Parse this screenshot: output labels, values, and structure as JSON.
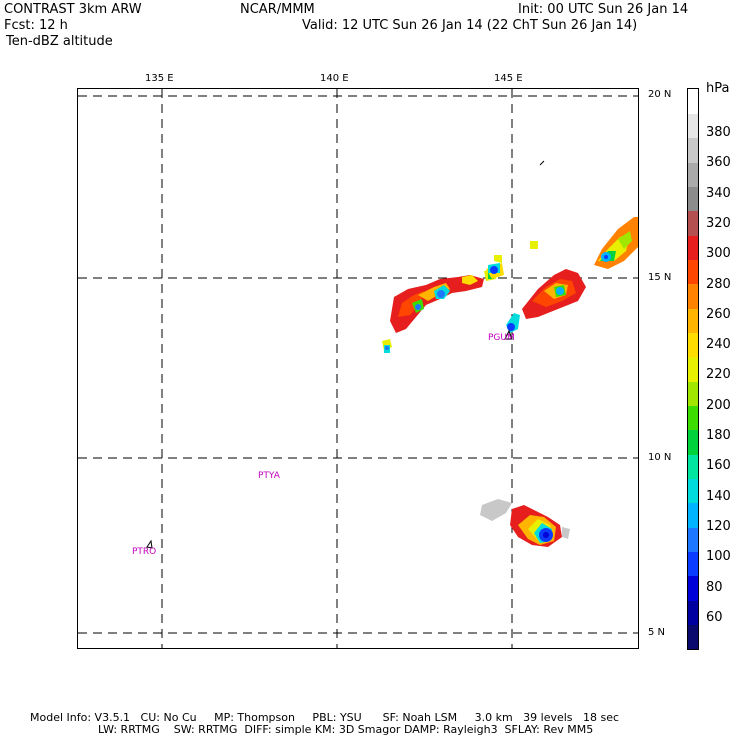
{
  "header": {
    "model": "CONTRAST  3km ARW",
    "center": "NCAR/MMM",
    "init": "Init: 00 UTC Sun 26 Jan 14",
    "fcst": "Fcst:   12 h",
    "valid": "Valid: 12 UTC Sun 26 Jan 14 (22 ChT Sun 26 Jan 14)",
    "field": "Ten-dBZ altitude"
  },
  "axes": {
    "lon_labels": [
      "135 E",
      "140 E",
      "145 E"
    ],
    "lat_labels": [
      "20 N",
      "15 N",
      "10 N",
      "5 N"
    ]
  },
  "legend": {
    "unit": "hPa",
    "levels": [
      "380",
      "360",
      "340",
      "320",
      "300",
      "280",
      "260",
      "240",
      "220",
      "200",
      "180",
      "160",
      "140",
      "120",
      "100",
      "80",
      "60"
    ],
    "colors": [
      "#0a0a6e",
      "#0000a0",
      "#0000d8",
      "#0a3cff",
      "#1e78ff",
      "#00b4ff",
      "#00dcdc",
      "#00e6a0",
      "#00d23c",
      "#3cdc00",
      "#a0e600",
      "#e6f000",
      "#ffdc00",
      "#ffb400",
      "#ff8200",
      "#ff4600",
      "#e61e1e",
      "#b45050",
      "#8c8c8c",
      "#aaaaaa",
      "#c8c8c8",
      "#e6e6e6",
      "#ffffff"
    ]
  },
  "stations": {
    "pgum": "PGUM",
    "ptya": "PTYA",
    "ptro": "PTRO"
  },
  "footer": {
    "line1": "Model Info: V3.5.1   CU: No Cu     MP: Thompson     PBL: YSU      SF: Noah LSM     3.0 km   39 levels   18 sec",
    "line2": "LW: RRTMG    SW: RRTMG  DIFF: simple KM: 3D Smagor DAMP: Rayleigh3  SFLAY: Rev MM5"
  }
}
